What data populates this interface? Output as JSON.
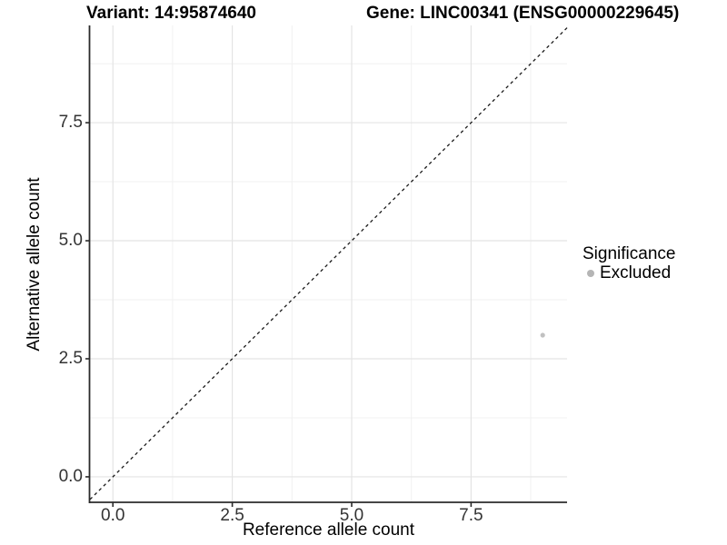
{
  "chart_data": {
    "type": "scatter",
    "titles": {
      "left": "Variant: 14:95874640",
      "right": "Gene: LINC00341 (ENSG00000229645)"
    },
    "xlabel": "Reference allele count",
    "ylabel": "Alternative allele count",
    "xlim": [
      -0.48,
      9.51
    ],
    "ylim": [
      -0.54,
      9.56
    ],
    "x_major_ticks": {
      "values": [
        0,
        2.5,
        5,
        7.5
      ],
      "labels": [
        "0.0",
        "2.5",
        "5.0",
        "7.5"
      ]
    },
    "y_major_ticks": {
      "values": [
        0,
        2.5,
        5,
        7.5
      ],
      "labels": [
        "0.0",
        "2.5",
        "5.0",
        "7.5"
      ]
    },
    "x_minor_ticks": [
      1.25,
      3.75,
      6.25,
      8.75
    ],
    "y_minor_ticks": [
      1.25,
      3.75,
      6.25,
      8.75
    ],
    "points": [
      {
        "x": 9,
        "y": 3,
        "significance": "Excluded",
        "color": "#c1c1c1",
        "radius": 2.6
      }
    ],
    "reference_line": {
      "type": "identity",
      "slope": 1,
      "intercept": 0,
      "style": "dashed",
      "color": "#1a1a1a"
    },
    "legend": {
      "title": "Significance",
      "position": "right",
      "items": [
        {
          "label": "Excluded",
          "color": "#b5b5b5"
        }
      ]
    },
    "grid": {
      "show": true,
      "major_color": "#e4e4e4",
      "minor_color": "#f1f1f1",
      "background": "#ffffff"
    },
    "axis_color": "#2b2b2b"
  }
}
